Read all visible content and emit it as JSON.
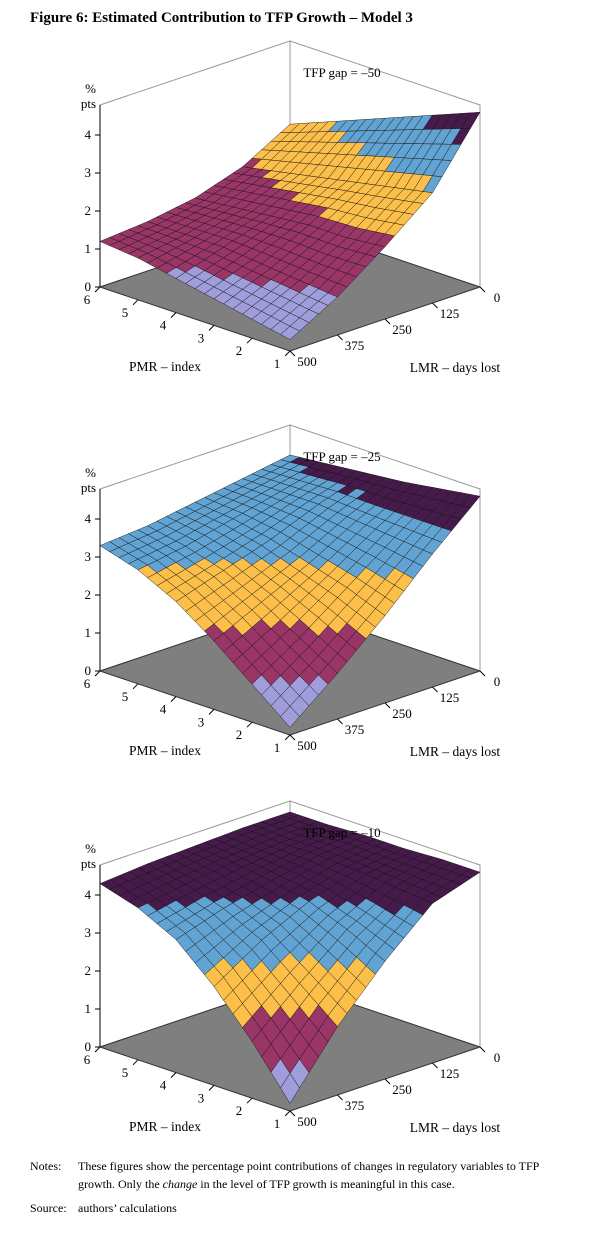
{
  "page": {
    "title": "Figure 6: Estimated Contribution to TFP Growth – Model 3"
  },
  "notes": {
    "label": "Notes:",
    "line1": "These figures show the percentage point contributions of changes in regulatory variables to TFP growth.",
    "line2_pre": " Only the ",
    "line2_italic": "change",
    "line2_post": " in the level of TFP growth is meaningful in this case."
  },
  "source": {
    "label": "Source:",
    "text": "authors’ calculations"
  },
  "style": {
    "band_colors": [
      "#a09ddb",
      "#9a3567",
      "#fbbf4a",
      "#61a3d2",
      "#461a4a"
    ],
    "band_bounds": [
      0,
      1,
      2,
      3,
      4,
      5
    ],
    "floor_color": "#7f7f7f",
    "floor_edge_color": "#333333",
    "wall_color": "#ffffff",
    "frame_color": "#999999",
    "mesh_color": "#141414",
    "mesh_steps": 20
  },
  "chart_data": [
    {
      "type": "surface",
      "annotation": "TFP gap = –50",
      "xlabel": "PMR – index",
      "ylabel": "LMR – days lost",
      "zlabel": [
        "%",
        "pts"
      ],
      "z_ticks": [
        0,
        1,
        2,
        3,
        4
      ],
      "zlim": [
        0,
        5
      ],
      "grid": {
        "pmr": [
          6,
          5,
          4,
          3,
          2,
          1
        ],
        "lmr": [
          0,
          125,
          250,
          375,
          500
        ],
        "z": [
          [
            2.6,
            1.9,
            1.5,
            1.3,
            1.2
          ],
          [
            3.0,
            2.1,
            1.6,
            1.3,
            1.1
          ],
          [
            3.4,
            2.3,
            1.7,
            1.3,
            0.9
          ],
          [
            3.8,
            2.5,
            1.8,
            1.2,
            0.7
          ],
          [
            4.2,
            2.7,
            1.8,
            1.1,
            0.5
          ],
          [
            4.6,
            2.9,
            1.9,
            1.0,
            0.3
          ]
        ]
      }
    },
    {
      "type": "surface",
      "annotation": "TFP gap = –25",
      "xlabel": "PMR – index",
      "ylabel": "LMR – days lost",
      "zlabel": [
        "%",
        "pts"
      ],
      "z_ticks": [
        0,
        1,
        2,
        3,
        4
      ],
      "zlim": [
        0,
        5
      ],
      "grid": {
        "pmr": [
          6,
          5,
          4,
          3,
          2,
          1
        ],
        "lmr": [
          0,
          125,
          250,
          375,
          500
        ],
        "z": [
          [
            4.0,
            3.8,
            3.6,
            3.4,
            3.3
          ],
          [
            4.1,
            3.8,
            3.5,
            3.2,
            3.0
          ],
          [
            4.2,
            3.8,
            3.3,
            2.9,
            2.5
          ],
          [
            4.3,
            3.7,
            3.0,
            2.4,
            1.8
          ],
          [
            4.45,
            3.6,
            2.7,
            1.8,
            1.0
          ],
          [
            4.6,
            3.5,
            2.3,
            1.2,
            0.2
          ]
        ]
      }
    },
    {
      "type": "surface",
      "annotation": "TFP gap = –10",
      "xlabel": "PMR – index",
      "ylabel": "LMR – days lost",
      "zlabel": [
        "%",
        "pts"
      ],
      "z_ticks": [
        0,
        1,
        2,
        3,
        4
      ],
      "zlim": [
        0,
        5
      ],
      "grid": {
        "pmr": [
          6,
          5,
          4,
          3,
          2,
          1
        ],
        "lmr": [
          0,
          125,
          250,
          375,
          500
        ],
        "z": [
          [
            4.5,
            4.5,
            4.45,
            4.4,
            4.3
          ],
          [
            4.5,
            4.45,
            4.35,
            4.2,
            4.0
          ],
          [
            4.55,
            4.45,
            4.2,
            3.9,
            3.5
          ],
          [
            4.55,
            4.4,
            4.0,
            3.4,
            2.6
          ],
          [
            4.6,
            4.3,
            3.6,
            2.6,
            1.5
          ],
          [
            4.6,
            4.2,
            3.1,
            1.8,
            0.2
          ]
        ]
      }
    }
  ]
}
